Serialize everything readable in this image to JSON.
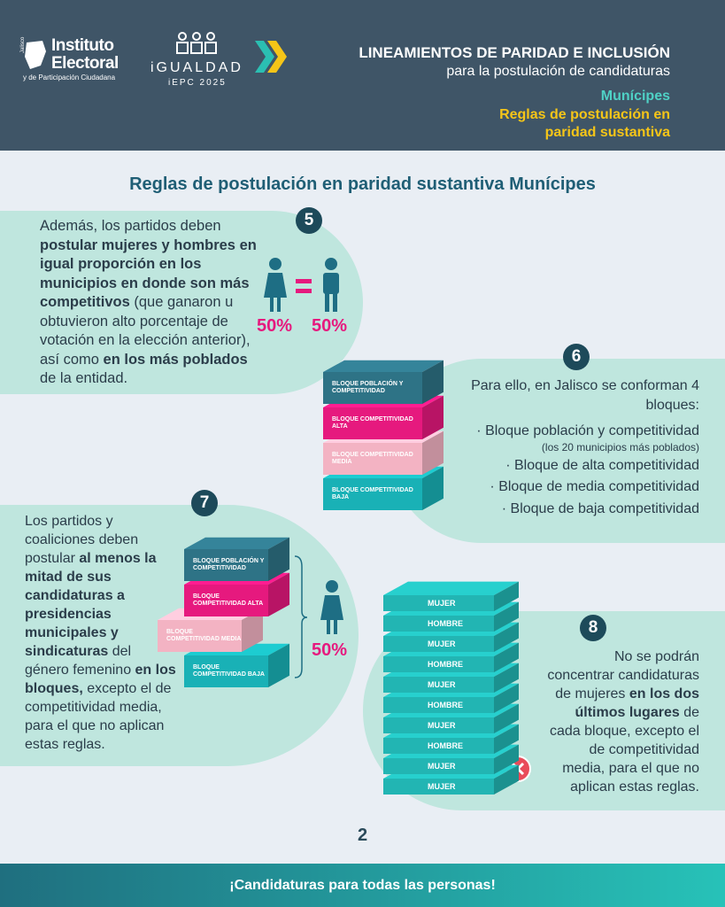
{
  "header": {
    "logo": {
      "line1": "Instituto",
      "line2": "Electoral",
      "line3": "y de Participación Ciudadana",
      "state": "Jalisco"
    },
    "badge": {
      "name": "iGUALDAD",
      "edition": "iEPC 2025"
    },
    "title": "LINEAMIENTOS DE PARIDAD E INCLUSIÓN",
    "subtitle": "para la postulación de candidaturas",
    "section": "Munícipes",
    "topic": "Reglas de postulación en paridad sustantiva"
  },
  "main_title": "Reglas de postulación en paridad sustantiva Munícipes",
  "blocks": [
    "BLOQUE POBLACIÓN Y COMPETITIVIDAD",
    "BLOQUE COMPETITIVIDAD ALTA",
    "BLOQUE COMPETITIVIDAD MEDIA",
    "BLOQUE COMPETITIVIDAD BAJA"
  ],
  "rules": [
    {
      "number": "5",
      "text": [
        "Además, los partidos deben ",
        "postular mujeres y hombres en igual proporción en los municipios en donde son más competitivos",
        " (que ganaron u obtuvieron alto porcentaje de votación en la elección anterior), así como ",
        "en los más poblados",
        " de la entidad."
      ],
      "women": "50%",
      "men": "50%"
    },
    {
      "number": "6",
      "intro": "Para ello, en Jalisco se conforman 4 bloques:",
      "items": [
        "Bloque población y competitividad",
        "Bloque de alta competitividad",
        "Bloque de media competitividad",
        "Bloque de baja competitividad"
      ],
      "note": "(los 20 municipios más poblados)"
    },
    {
      "number": "7",
      "text": [
        "Los partidos y coaliciones deben postular ",
        "al menos la mitad de sus candidaturas a presidencias municipales y sindicaturas",
        " del género femenino ",
        "en los bloques,",
        " excepto el de competitividad media, para el que no aplican estas reglas."
      ],
      "women": "50%"
    },
    {
      "number": "8",
      "text": [
        "No se podrán concentrar candidaturas de mujeres ",
        "en los dos últimos lugares",
        " de cada bloque, excepto el de competitividad media, para el que no aplican estas reglas."
      ],
      "stack": [
        "MUJER",
        "HOMBRE",
        "MUJER",
        "HOMBRE",
        "MUJER",
        "HOMBRE",
        "MUJER",
        "HOMBRE",
        "MUJER",
        "MUJER"
      ]
    }
  ],
  "page_number": "2",
  "footer": "¡Candidaturas para todas las personas!"
}
